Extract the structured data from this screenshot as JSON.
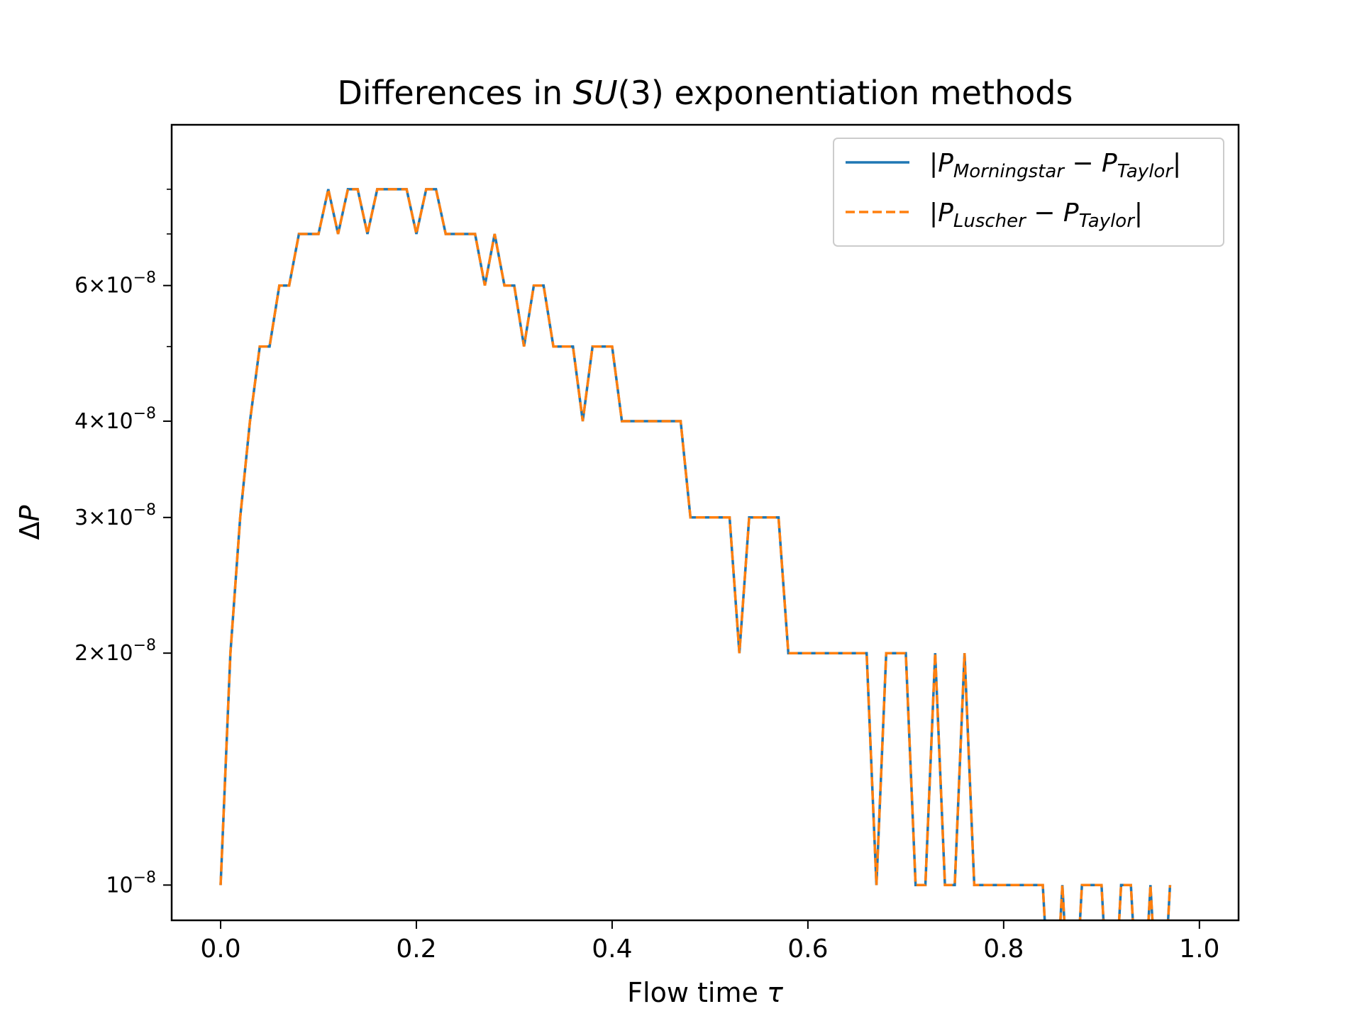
{
  "chart_data": {
    "type": "line",
    "title": {
      "pre": "Differences in ",
      "it": "SU",
      "post": "(3) exponentiation methods"
    },
    "xlabel": {
      "pre": "Flow time ",
      "it": "τ"
    },
    "ylabel": {
      "pre": "Δ",
      "it": "P"
    },
    "x_scale": "linear",
    "y_scale": "log",
    "xlim": [
      -0.05,
      1.04
    ],
    "ylim": [
      9e-09,
      9.7e-08
    ],
    "x_ticks": [
      0.0,
      0.2,
      0.4,
      0.6,
      0.8,
      1.0
    ],
    "x_tick_labels": [
      "0.0",
      "0.2",
      "0.4",
      "0.6",
      "0.8",
      "1.0"
    ],
    "y_ticks": [
      {
        "value": 1e-08,
        "mantissa": "",
        "exp": "−8"
      },
      {
        "value": 2e-08,
        "mantissa": "2",
        "exp": "−8"
      },
      {
        "value": 3e-08,
        "mantissa": "3",
        "exp": "−8"
      },
      {
        "value": 4e-08,
        "mantissa": "4",
        "exp": "−8"
      },
      {
        "value": 6e-08,
        "mantissa": "6",
        "exp": "−8"
      }
    ],
    "y_minor_ticks": [
      5e-08,
      7e-08,
      8e-08
    ],
    "grid": false,
    "legend_placement": "upper right",
    "colors": {
      "series_1": "#1f77b4",
      "series_2": "#ff7f0e"
    },
    "x": [
      0.0,
      0.01,
      0.02,
      0.03,
      0.04,
      0.05,
      0.06,
      0.07,
      0.08,
      0.09,
      0.1,
      0.11,
      0.12,
      0.13,
      0.14,
      0.15,
      0.16,
      0.17,
      0.18,
      0.19,
      0.2,
      0.21,
      0.22,
      0.23,
      0.24,
      0.25,
      0.26,
      0.27,
      0.28,
      0.29,
      0.3,
      0.31,
      0.32,
      0.33,
      0.34,
      0.35,
      0.36,
      0.37,
      0.38,
      0.39,
      0.4,
      0.41,
      0.42,
      0.43,
      0.44,
      0.45,
      0.46,
      0.47,
      0.48,
      0.49,
      0.5,
      0.51,
      0.52,
      0.53,
      0.54,
      0.55,
      0.56,
      0.57,
      0.58,
      0.59,
      0.6,
      0.61,
      0.62,
      0.63,
      0.64,
      0.65,
      0.66,
      0.67,
      0.68,
      0.69,
      0.7,
      0.71,
      0.72,
      0.73,
      0.74,
      0.75,
      0.76,
      0.77,
      0.78,
      0.79,
      0.8,
      0.81,
      0.82,
      0.83,
      0.84,
      0.85,
      0.86,
      0.87,
      0.88,
      0.89,
      0.9,
      0.91,
      0.92,
      0.93,
      0.94,
      0.95,
      0.96,
      0.97
    ],
    "series": [
      {
        "name": {
          "pre": "|",
          "P": "P",
          "sub1": "Morningstar",
          "mid": " − ",
          "P2": "P",
          "sub2": "Taylor",
          "post": "|"
        },
        "style": "solid",
        "values": [
          1e-08,
          2e-08,
          3e-08,
          4e-08,
          5e-08,
          5e-08,
          6e-08,
          6e-08,
          7e-08,
          7e-08,
          7e-08,
          8e-08,
          7e-08,
          8e-08,
          8e-08,
          7e-08,
          8e-08,
          8e-08,
          8e-08,
          8e-08,
          7e-08,
          8e-08,
          8e-08,
          7e-08,
          7e-08,
          7e-08,
          7e-08,
          6e-08,
          7e-08,
          6e-08,
          6e-08,
          5e-08,
          6e-08,
          6e-08,
          5e-08,
          5e-08,
          5e-08,
          4e-08,
          5e-08,
          5e-08,
          5e-08,
          4e-08,
          4e-08,
          4e-08,
          4e-08,
          4e-08,
          4e-08,
          4e-08,
          3e-08,
          3e-08,
          3e-08,
          3e-08,
          3e-08,
          2e-08,
          3e-08,
          3e-08,
          3e-08,
          3e-08,
          2e-08,
          2e-08,
          2e-08,
          2e-08,
          2e-08,
          2e-08,
          2e-08,
          2e-08,
          2e-08,
          1e-08,
          2e-08,
          2e-08,
          2e-08,
          1e-08,
          1e-08,
          2e-08,
          1e-08,
          1e-08,
          2e-08,
          1e-08,
          1e-08,
          1e-08,
          1e-08,
          1e-08,
          1e-08,
          1e-08,
          1e-08,
          0,
          1e-08,
          0,
          1e-08,
          1e-08,
          1e-08,
          0,
          1e-08,
          1e-08,
          0,
          1e-08,
          0,
          1e-08
        ]
      },
      {
        "name": {
          "pre": "|",
          "P": "P",
          "sub1": "Luscher",
          "mid": " − ",
          "P2": "P",
          "sub2": "Taylor",
          "post": "|"
        },
        "style": "dashed",
        "values": [
          1e-08,
          2e-08,
          3e-08,
          4e-08,
          5e-08,
          5e-08,
          6e-08,
          6e-08,
          7e-08,
          7e-08,
          7e-08,
          8e-08,
          7e-08,
          8e-08,
          8e-08,
          7e-08,
          8e-08,
          8e-08,
          8e-08,
          8e-08,
          7e-08,
          8e-08,
          8e-08,
          7e-08,
          7e-08,
          7e-08,
          7e-08,
          6e-08,
          7e-08,
          6e-08,
          6e-08,
          5e-08,
          6e-08,
          6e-08,
          5e-08,
          5e-08,
          5e-08,
          4e-08,
          5e-08,
          5e-08,
          5e-08,
          4e-08,
          4e-08,
          4e-08,
          4e-08,
          4e-08,
          4e-08,
          4e-08,
          3e-08,
          3e-08,
          3e-08,
          3e-08,
          3e-08,
          2e-08,
          3e-08,
          3e-08,
          3e-08,
          3e-08,
          2e-08,
          2e-08,
          2e-08,
          2e-08,
          2e-08,
          2e-08,
          2e-08,
          2e-08,
          2e-08,
          1e-08,
          2e-08,
          2e-08,
          2e-08,
          1e-08,
          1e-08,
          2e-08,
          1e-08,
          1e-08,
          2e-08,
          1e-08,
          1e-08,
          1e-08,
          1e-08,
          1e-08,
          1e-08,
          1e-08,
          1e-08,
          0,
          1e-08,
          0,
          1e-08,
          1e-08,
          1e-08,
          0,
          1e-08,
          1e-08,
          0,
          1e-08,
          0,
          1e-08
        ]
      }
    ]
  }
}
